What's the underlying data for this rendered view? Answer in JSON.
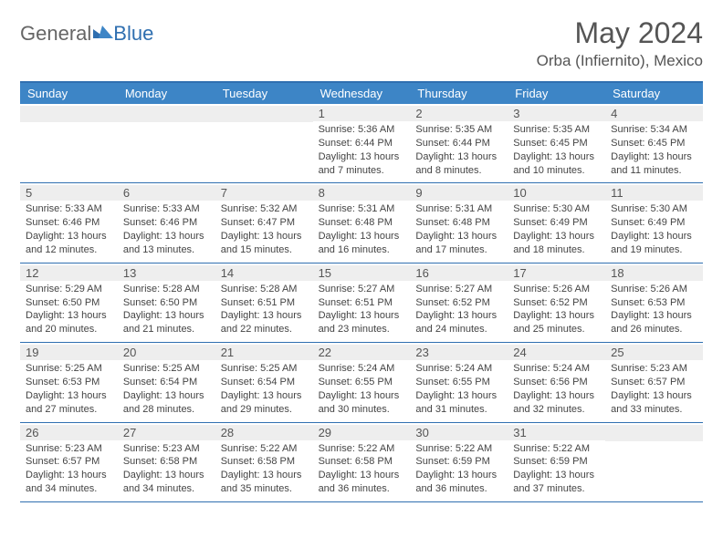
{
  "brand": {
    "text1": "General",
    "text2": "Blue"
  },
  "title": "May 2024",
  "location": "Orba (Infiernito), Mexico",
  "colors": {
    "header_bg": "#3d85c6",
    "border": "#2f6fb0",
    "daynum_bg": "#eeeeee"
  },
  "days_of_week": [
    "Sunday",
    "Monday",
    "Tuesday",
    "Wednesday",
    "Thursday",
    "Friday",
    "Saturday"
  ],
  "weeks": [
    [
      {
        "n": "",
        "sr": "",
        "ss": "",
        "dl": ""
      },
      {
        "n": "",
        "sr": "",
        "ss": "",
        "dl": ""
      },
      {
        "n": "",
        "sr": "",
        "ss": "",
        "dl": ""
      },
      {
        "n": "1",
        "sr": "5:36 AM",
        "ss": "6:44 PM",
        "dl": "13 hours and 7 minutes."
      },
      {
        "n": "2",
        "sr": "5:35 AM",
        "ss": "6:44 PM",
        "dl": "13 hours and 8 minutes."
      },
      {
        "n": "3",
        "sr": "5:35 AM",
        "ss": "6:45 PM",
        "dl": "13 hours and 10 minutes."
      },
      {
        "n": "4",
        "sr": "5:34 AM",
        "ss": "6:45 PM",
        "dl": "13 hours and 11 minutes."
      }
    ],
    [
      {
        "n": "5",
        "sr": "5:33 AM",
        "ss": "6:46 PM",
        "dl": "13 hours and 12 minutes."
      },
      {
        "n": "6",
        "sr": "5:33 AM",
        "ss": "6:46 PM",
        "dl": "13 hours and 13 minutes."
      },
      {
        "n": "7",
        "sr": "5:32 AM",
        "ss": "6:47 PM",
        "dl": "13 hours and 15 minutes."
      },
      {
        "n": "8",
        "sr": "5:31 AM",
        "ss": "6:48 PM",
        "dl": "13 hours and 16 minutes."
      },
      {
        "n": "9",
        "sr": "5:31 AM",
        "ss": "6:48 PM",
        "dl": "13 hours and 17 minutes."
      },
      {
        "n": "10",
        "sr": "5:30 AM",
        "ss": "6:49 PM",
        "dl": "13 hours and 18 minutes."
      },
      {
        "n": "11",
        "sr": "5:30 AM",
        "ss": "6:49 PM",
        "dl": "13 hours and 19 minutes."
      }
    ],
    [
      {
        "n": "12",
        "sr": "5:29 AM",
        "ss": "6:50 PM",
        "dl": "13 hours and 20 minutes."
      },
      {
        "n": "13",
        "sr": "5:28 AM",
        "ss": "6:50 PM",
        "dl": "13 hours and 21 minutes."
      },
      {
        "n": "14",
        "sr": "5:28 AM",
        "ss": "6:51 PM",
        "dl": "13 hours and 22 minutes."
      },
      {
        "n": "15",
        "sr": "5:27 AM",
        "ss": "6:51 PM",
        "dl": "13 hours and 23 minutes."
      },
      {
        "n": "16",
        "sr": "5:27 AM",
        "ss": "6:52 PM",
        "dl": "13 hours and 24 minutes."
      },
      {
        "n": "17",
        "sr": "5:26 AM",
        "ss": "6:52 PM",
        "dl": "13 hours and 25 minutes."
      },
      {
        "n": "18",
        "sr": "5:26 AM",
        "ss": "6:53 PM",
        "dl": "13 hours and 26 minutes."
      }
    ],
    [
      {
        "n": "19",
        "sr": "5:25 AM",
        "ss": "6:53 PM",
        "dl": "13 hours and 27 minutes."
      },
      {
        "n": "20",
        "sr": "5:25 AM",
        "ss": "6:54 PM",
        "dl": "13 hours and 28 minutes."
      },
      {
        "n": "21",
        "sr": "5:25 AM",
        "ss": "6:54 PM",
        "dl": "13 hours and 29 minutes."
      },
      {
        "n": "22",
        "sr": "5:24 AM",
        "ss": "6:55 PM",
        "dl": "13 hours and 30 minutes."
      },
      {
        "n": "23",
        "sr": "5:24 AM",
        "ss": "6:55 PM",
        "dl": "13 hours and 31 minutes."
      },
      {
        "n": "24",
        "sr": "5:24 AM",
        "ss": "6:56 PM",
        "dl": "13 hours and 32 minutes."
      },
      {
        "n": "25",
        "sr": "5:23 AM",
        "ss": "6:57 PM",
        "dl": "13 hours and 33 minutes."
      }
    ],
    [
      {
        "n": "26",
        "sr": "5:23 AM",
        "ss": "6:57 PM",
        "dl": "13 hours and 34 minutes."
      },
      {
        "n": "27",
        "sr": "5:23 AM",
        "ss": "6:58 PM",
        "dl": "13 hours and 34 minutes."
      },
      {
        "n": "28",
        "sr": "5:22 AM",
        "ss": "6:58 PM",
        "dl": "13 hours and 35 minutes."
      },
      {
        "n": "29",
        "sr": "5:22 AM",
        "ss": "6:58 PM",
        "dl": "13 hours and 36 minutes."
      },
      {
        "n": "30",
        "sr": "5:22 AM",
        "ss": "6:59 PM",
        "dl": "13 hours and 36 minutes."
      },
      {
        "n": "31",
        "sr": "5:22 AM",
        "ss": "6:59 PM",
        "dl": "13 hours and 37 minutes."
      },
      {
        "n": "",
        "sr": "",
        "ss": "",
        "dl": ""
      }
    ]
  ],
  "labels": {
    "sunrise": "Sunrise:",
    "sunset": "Sunset:",
    "daylight": "Daylight:"
  }
}
